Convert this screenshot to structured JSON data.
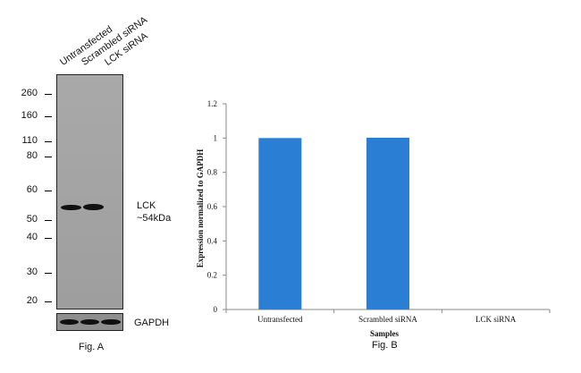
{
  "figA": {
    "lanes": [
      "Untransfected",
      "Scrambled siRNA",
      "LCK siRNA"
    ],
    "markers": [
      "260",
      "160",
      "110",
      "80",
      "60",
      "50",
      "40",
      "30",
      "20"
    ],
    "target_label": "LCK",
    "target_size": "~54kDa",
    "loading_label": "GAPDH",
    "caption": "Fig. A"
  },
  "figB": {
    "caption": "Fig. B"
  },
  "chart_data": {
    "type": "bar",
    "categories": [
      "Untransfected",
      "Scrambled siRNA",
      "LCK siRNA"
    ],
    "values": [
      1.0,
      1.002,
      0.0
    ],
    "title": "",
    "xlabel": "Samples",
    "ylabel": "Expression normalized to GAPDH",
    "ylim": [
      0,
      1.2
    ],
    "yticks": [
      "0",
      "0.2",
      "0.4",
      "0.6",
      "0.8",
      "1",
      "1.2"
    ],
    "bar_color": "#2a7fd4",
    "grid": false
  }
}
